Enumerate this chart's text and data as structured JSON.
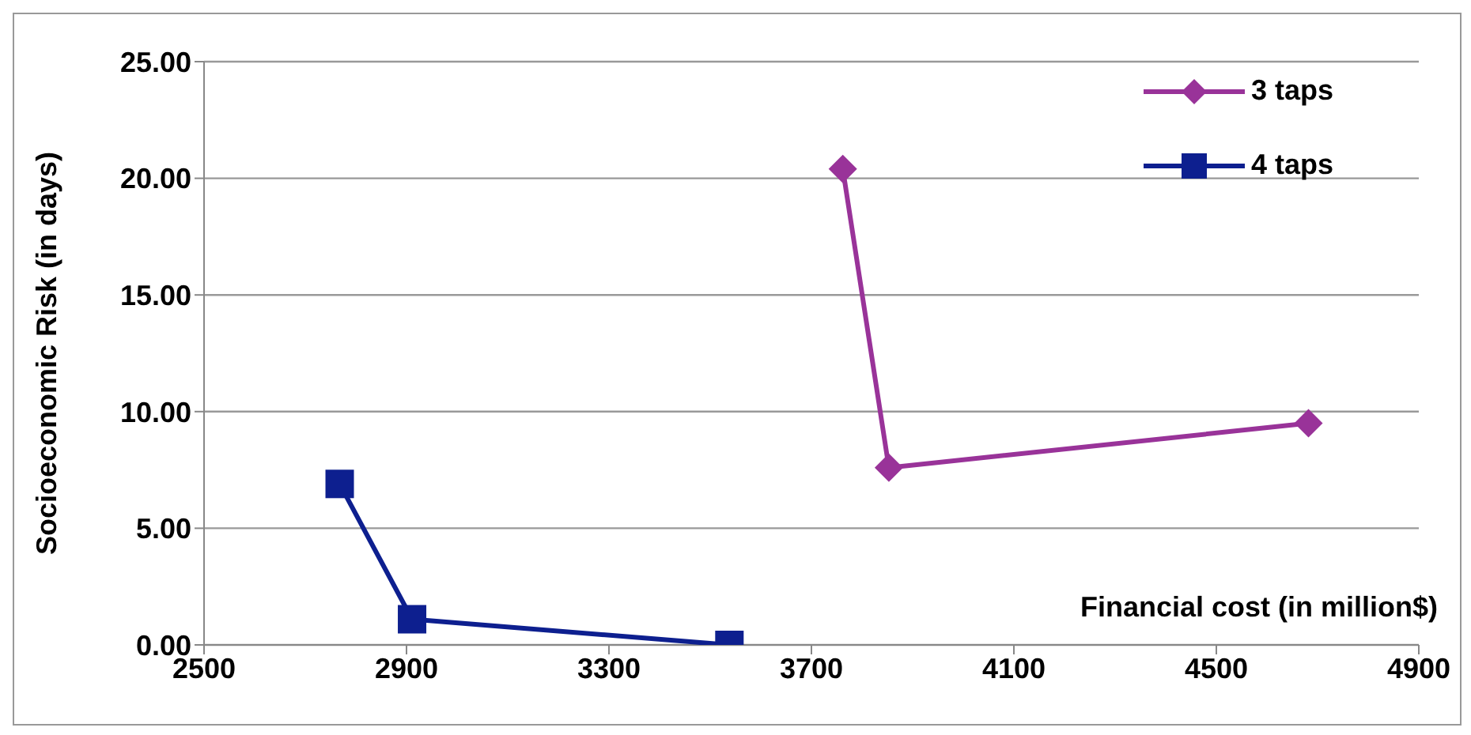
{
  "chart_data": {
    "type": "line",
    "xlabel": "Financial cost (in million$)",
    "ylabel": "Socioeconomic Risk (in days)",
    "series": [
      {
        "name": "3 taps",
        "color": "#993399",
        "marker": "diamond",
        "x": [
          3762,
          3853,
          4682
        ],
        "values": [
          20.4,
          7.6,
          9.5
        ]
      },
      {
        "name": "4 taps",
        "color": "#0d1f8f",
        "marker": "square",
        "x": [
          2768,
          2911,
          3538
        ],
        "values": [
          6.9,
          1.1,
          0
        ]
      }
    ],
    "xlim": [
      2500,
      4900
    ],
    "xticks": [
      2500,
      2900,
      3300,
      3700,
      4100,
      4500,
      4900
    ],
    "ylim": [
      0,
      25
    ],
    "yticks": [
      {
        "value": 0,
        "label": "0.00"
      },
      {
        "value": 5,
        "label": "5.00"
      },
      {
        "value": 10,
        "label": "10.00"
      },
      {
        "value": 15,
        "label": "15.00"
      },
      {
        "value": 20,
        "label": "20.00"
      },
      {
        "value": 25,
        "label": "25.00"
      }
    ],
    "grid": "y",
    "legend": "top right",
    "line_style": "solid"
  }
}
